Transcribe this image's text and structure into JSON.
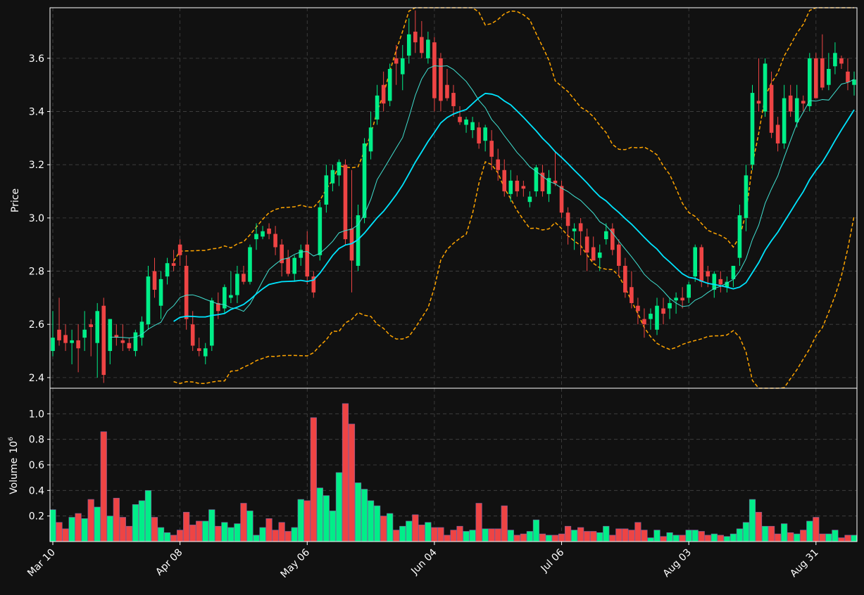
{
  "chart_data": {
    "type": "candlestick",
    "colors": {
      "background": "#111111",
      "up": "#00ee88",
      "down": "#ee4444",
      "ma_fast": "#40e0d0",
      "ma_slow": "#00e5ff",
      "band": "#ffa500",
      "grid": "#444444",
      "axis": "#ffffff",
      "text": "#ffffff"
    },
    "price_panel": {
      "ylabel": "Price",
      "ylim": [
        2.36,
        3.79
      ],
      "yticks": [
        2.4,
        2.6,
        2.8,
        3.0,
        3.2,
        3.4,
        3.6
      ],
      "grid": true
    },
    "volume_panel": {
      "ylabel": "Volume",
      "exponent_label": "10",
      "exponent_power": "6",
      "ylim": [
        0,
        1.2
      ],
      "yticks": [
        0.2,
        0.4,
        0.6,
        0.8,
        1.0
      ],
      "grid": true
    },
    "x_axis": {
      "n_bars": 127,
      "tick_labels": [
        "Mar 10",
        "Apr 08",
        "May 06",
        "Jun 04",
        "Jul 06",
        "Aug 03",
        "Aug 31"
      ],
      "tick_index": [
        0,
        20,
        40,
        60,
        80,
        100,
        120
      ]
    },
    "candles_ohlc": [
      [
        2.5,
        2.65,
        2.48,
        2.55
      ],
      [
        2.58,
        2.7,
        2.52,
        2.54
      ],
      [
        2.56,
        2.6,
        2.5,
        2.53
      ],
      [
        2.53,
        2.58,
        2.45,
        2.54
      ],
      [
        2.54,
        2.6,
        2.42,
        2.51
      ],
      [
        2.55,
        2.65,
        2.5,
        2.58
      ],
      [
        2.6,
        2.62,
        2.48,
        2.59
      ],
      [
        2.53,
        2.68,
        2.4,
        2.65
      ],
      [
        2.67,
        2.7,
        2.38,
        2.41
      ],
      [
        2.5,
        2.62,
        2.45,
        2.62
      ],
      [
        2.56,
        2.6,
        2.52,
        2.55
      ],
      [
        2.54,
        2.6,
        2.5,
        2.53
      ],
      [
        2.53,
        2.55,
        2.5,
        2.51
      ],
      [
        2.5,
        2.58,
        2.48,
        2.57
      ],
      [
        2.55,
        2.63,
        2.52,
        2.61
      ],
      [
        2.6,
        2.82,
        2.58,
        2.78
      ],
      [
        2.8,
        2.85,
        2.7,
        2.73
      ],
      [
        2.67,
        2.8,
        2.62,
        2.77
      ],
      [
        2.78,
        2.85,
        2.75,
        2.83
      ],
      [
        2.83,
        2.88,
        2.8,
        2.82
      ],
      [
        2.9,
        2.92,
        2.82,
        2.86
      ],
      [
        2.82,
        2.86,
        2.58,
        2.62
      ],
      [
        2.6,
        2.65,
        2.5,
        2.52
      ],
      [
        2.51,
        2.55,
        2.48,
        2.5
      ],
      [
        2.48,
        2.53,
        2.45,
        2.51
      ],
      [
        2.52,
        2.7,
        2.5,
        2.69
      ],
      [
        2.68,
        2.72,
        2.62,
        2.65
      ],
      [
        2.66,
        2.75,
        2.64,
        2.74
      ],
      [
        2.7,
        2.8,
        2.68,
        2.71
      ],
      [
        2.71,
        2.82,
        2.68,
        2.79
      ],
      [
        2.79,
        2.82,
        2.75,
        2.76
      ],
      [
        2.76,
        2.9,
        2.75,
        2.89
      ],
      [
        2.92,
        2.98,
        2.88,
        2.94
      ],
      [
        2.93,
        2.97,
        2.92,
        2.95
      ],
      [
        2.96,
        2.98,
        2.92,
        2.94
      ],
      [
        2.94,
        2.97,
        2.86,
        2.89
      ],
      [
        2.9,
        2.92,
        2.78,
        2.83
      ],
      [
        2.85,
        2.88,
        2.78,
        2.79
      ],
      [
        2.79,
        2.86,
        2.76,
        2.85
      ],
      [
        2.85,
        2.9,
        2.82,
        2.88
      ],
      [
        2.9,
        2.95,
        2.75,
        2.78
      ],
      [
        2.78,
        2.8,
        2.7,
        2.72
      ],
      [
        2.86,
        3.06,
        2.84,
        3.04
      ],
      [
        3.05,
        3.2,
        3.02,
        3.16
      ],
      [
        3.13,
        3.2,
        3.1,
        3.18
      ],
      [
        3.16,
        3.22,
        3.12,
        3.21
      ],
      [
        3.2,
        3.22,
        2.9,
        2.92
      ],
      [
        2.96,
        3.18,
        2.72,
        2.84
      ],
      [
        2.82,
        3.05,
        2.8,
        3.01
      ],
      [
        3.0,
        3.3,
        2.98,
        3.28
      ],
      [
        3.25,
        3.4,
        3.22,
        3.34
      ],
      [
        3.37,
        3.5,
        3.35,
        3.46
      ],
      [
        3.5,
        3.55,
        3.4,
        3.43
      ],
      [
        3.44,
        3.58,
        3.42,
        3.56
      ],
      [
        3.6,
        3.65,
        3.5,
        3.58
      ],
      [
        3.54,
        3.65,
        3.48,
        3.6
      ],
      [
        3.61,
        3.75,
        3.58,
        3.69
      ],
      [
        3.7,
        3.78,
        3.62,
        3.66
      ],
      [
        3.68,
        3.74,
        3.6,
        3.62
      ],
      [
        3.6,
        3.7,
        3.58,
        3.67
      ],
      [
        3.66,
        3.68,
        3.4,
        3.45
      ],
      [
        3.6,
        3.62,
        3.4,
        3.44
      ],
      [
        3.5,
        3.56,
        3.44,
        3.45
      ],
      [
        3.47,
        3.5,
        3.38,
        3.42
      ],
      [
        3.38,
        3.42,
        3.35,
        3.36
      ],
      [
        3.35,
        3.38,
        3.32,
        3.37
      ],
      [
        3.33,
        3.38,
        3.3,
        3.36
      ],
      [
        3.34,
        3.36,
        3.26,
        3.28
      ],
      [
        3.29,
        3.35,
        3.25,
        3.34
      ],
      [
        3.29,
        3.33,
        3.18,
        3.23
      ],
      [
        3.22,
        3.26,
        3.14,
        3.18
      ],
      [
        3.18,
        3.22,
        3.08,
        3.1
      ],
      [
        3.09,
        3.18,
        3.06,
        3.14
      ],
      [
        3.14,
        3.16,
        3.08,
        3.1
      ],
      [
        3.12,
        3.14,
        3.08,
        3.11
      ],
      [
        3.06,
        3.1,
        3.04,
        3.08
      ],
      [
        3.1,
        3.2,
        3.08,
        3.19
      ],
      [
        3.17,
        3.2,
        3.08,
        3.1
      ],
      [
        3.09,
        3.18,
        3.06,
        3.15
      ],
      [
        3.14,
        3.25,
        3.12,
        3.13
      ],
      [
        3.12,
        3.14,
        3.0,
        3.02
      ],
      [
        3.02,
        3.04,
        2.9,
        2.97
      ],
      [
        2.95,
        2.98,
        2.88,
        2.96
      ],
      [
        2.98,
        3.0,
        2.86,
        2.95
      ],
      [
        2.93,
        2.96,
        2.8,
        2.87
      ],
      [
        2.89,
        2.93,
        2.85,
        2.84
      ],
      [
        2.85,
        2.9,
        2.8,
        2.87
      ],
      [
        2.92,
        2.98,
        2.9,
        2.95
      ],
      [
        2.96,
        2.98,
        2.86,
        2.88
      ],
      [
        2.9,
        2.92,
        2.78,
        2.82
      ],
      [
        2.82,
        2.85,
        2.7,
        2.72
      ],
      [
        2.74,
        2.8,
        2.66,
        2.68
      ],
      [
        2.67,
        2.7,
        2.6,
        2.65
      ],
      [
        2.62,
        2.66,
        2.55,
        2.6
      ],
      [
        2.62,
        2.66,
        2.58,
        2.64
      ],
      [
        2.58,
        2.7,
        2.56,
        2.67
      ],
      [
        2.66,
        2.7,
        2.6,
        2.64
      ],
      [
        2.66,
        2.7,
        2.62,
        2.68
      ],
      [
        2.69,
        2.72,
        2.64,
        2.7
      ],
      [
        2.7,
        2.74,
        2.66,
        2.69
      ],
      [
        2.7,
        2.76,
        2.68,
        2.75
      ],
      [
        2.78,
        2.9,
        2.76,
        2.89
      ],
      [
        2.89,
        2.9,
        2.74,
        2.76
      ],
      [
        2.8,
        2.82,
        2.74,
        2.78
      ],
      [
        2.73,
        2.8,
        2.7,
        2.79
      ],
      [
        2.77,
        2.8,
        2.72,
        2.75
      ],
      [
        2.74,
        2.78,
        2.72,
        2.76
      ],
      [
        2.77,
        2.82,
        2.74,
        2.82
      ],
      [
        2.85,
        3.05,
        2.82,
        3.01
      ],
      [
        3.0,
        3.2,
        2.95,
        3.16
      ],
      [
        3.2,
        3.5,
        3.18,
        3.47
      ],
      [
        3.44,
        3.6,
        3.4,
        3.43
      ],
      [
        3.4,
        3.6,
        3.38,
        3.58
      ],
      [
        3.5,
        3.55,
        3.3,
        3.32
      ],
      [
        3.35,
        3.38,
        3.25,
        3.28
      ],
      [
        3.28,
        3.5,
        3.26,
        3.45
      ],
      [
        3.46,
        3.5,
        3.38,
        3.4
      ],
      [
        3.36,
        3.5,
        3.34,
        3.45
      ],
      [
        3.44,
        3.46,
        3.4,
        3.43
      ],
      [
        3.42,
        3.62,
        3.4,
        3.6
      ],
      [
        3.6,
        3.62,
        3.48,
        3.45
      ],
      [
        3.6,
        3.69,
        3.48,
        3.49
      ],
      [
        3.5,
        3.62,
        3.48,
        3.56
      ],
      [
        3.57,
        3.66,
        3.54,
        3.62
      ],
      [
        3.6,
        3.61,
        3.56,
        3.58
      ],
      [
        3.55,
        3.6,
        3.48,
        3.51
      ],
      [
        3.5,
        3.55,
        3.46,
        3.52
      ]
    ],
    "volume_millions": [
      0.25,
      0.15,
      0.1,
      0.19,
      0.22,
      0.18,
      0.33,
      0.27,
      0.86,
      0.2,
      0.34,
      0.19,
      0.12,
      0.29,
      0.32,
      0.4,
      0.19,
      0.11,
      0.07,
      0.05,
      0.09,
      0.23,
      0.13,
      0.16,
      0.16,
      0.25,
      0.12,
      0.15,
      0.11,
      0.14,
      0.3,
      0.24,
      0.05,
      0.11,
      0.18,
      0.09,
      0.15,
      0.08,
      0.11,
      0.33,
      0.32,
      0.97,
      0.42,
      0.36,
      0.24,
      0.54,
      1.08,
      0.92,
      0.46,
      0.41,
      0.32,
      0.28,
      0.2,
      0.22,
      0.09,
      0.12,
      0.16,
      0.21,
      0.13,
      0.15,
      0.11,
      0.11,
      0.05,
      0.09,
      0.12,
      0.08,
      0.09,
      0.3,
      0.1,
      0.1,
      0.1,
      0.28,
      0.09,
      0.05,
      0.06,
      0.08,
      0.17,
      0.06,
      0.05,
      0.05,
      0.06,
      0.12,
      0.09,
      0.11,
      0.08,
      0.08,
      0.07,
      0.12,
      0.05,
      0.1,
      0.1,
      0.09,
      0.15,
      0.09,
      0.03,
      0.09,
      0.04,
      0.07,
      0.05,
      0.05,
      0.09,
      0.09,
      0.08,
      0.05,
      0.06,
      0.05,
      0.04,
      0.06,
      0.1,
      0.15,
      0.33,
      0.23,
      0.12,
      0.12,
      0.06,
      0.14,
      0.07,
      0.06,
      0.09,
      0.16,
      0.19,
      0.06,
      0.06,
      0.09,
      0.03,
      0.05,
      0.05
    ]
  }
}
